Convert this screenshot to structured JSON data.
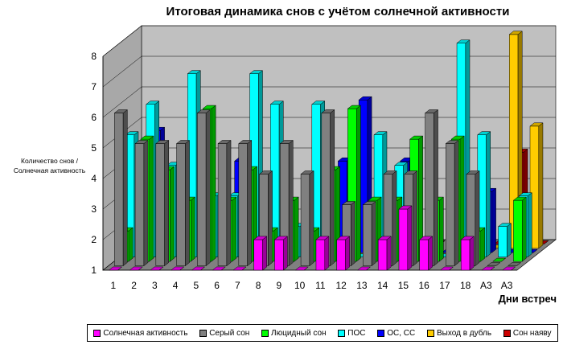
{
  "chart_data": {
    "type": "bar",
    "title": "Итоговая динамика снов с учётом солнечной активности",
    "ylabel": "Количество снов / Солнечная активность",
    "xlabel": "Дни встреч",
    "ylim": [
      1,
      8
    ],
    "yticks": [
      1,
      2,
      3,
      4,
      5,
      6,
      7,
      8
    ],
    "categories": [
      "1",
      "2",
      "3",
      "4",
      "5",
      "6",
      "7",
      "8",
      "9",
      "10",
      "11",
      "12",
      "13",
      "14",
      "15",
      "16",
      "17",
      "18",
      "А3",
      "А3"
    ],
    "series": [
      {
        "name": "Солнечная активность",
        "color": "#ff00ff",
        "values": [
          1,
          1,
          1,
          1,
          1,
          1,
          1,
          2,
          2,
          1,
          2,
          2,
          1,
          2,
          3,
          2,
          1,
          2,
          1,
          1
        ]
      },
      {
        "name": "Серый сон",
        "color": "#808080",
        "values": [
          6,
          5,
          5,
          5,
          6,
          5,
          5,
          4,
          5,
          4,
          6,
          3,
          3,
          4,
          4,
          6,
          5,
          4,
          1,
          1
        ]
      },
      {
        "name": "Люцидный сон",
        "color": "#00ff00",
        "values": [
          2,
          5,
          4,
          3,
          6,
          3,
          4,
          2,
          3,
          2,
          4,
          6,
          3,
          3,
          5,
          3,
          5,
          2,
          1,
          3
        ]
      },
      {
        "name": "ПОС",
        "color": "#00ffff",
        "values": [
          5,
          6,
          4,
          7,
          3,
          3,
          7,
          6,
          2,
          6,
          1,
          1,
          5,
          4,
          1,
          1,
          8,
          5,
          2,
          3
        ]
      },
      {
        "name": "ОС, СС",
        "color": "#0000ff",
        "values": [
          1,
          5,
          1,
          1,
          1,
          4,
          1,
          2,
          1,
          3,
          4,
          6,
          1,
          4,
          1,
          1,
          1,
          3,
          1,
          1
        ]
      },
      {
        "name": "Выход в дубль",
        "color": "#ffcc00",
        "values": [
          1,
          1,
          1,
          1,
          1,
          1,
          1,
          1,
          1,
          1,
          1,
          1,
          1,
          1,
          1,
          1,
          1,
          1,
          8,
          5
        ]
      },
      {
        "name": "Сон наяву",
        "color": "#cc0000",
        "values": [
          1,
          1,
          1,
          1,
          1,
          1,
          1,
          1,
          1,
          1,
          1,
          1,
          1,
          1,
          1,
          1,
          1,
          1,
          4,
          1
        ]
      }
    ],
    "legend_position": "bottom"
  }
}
